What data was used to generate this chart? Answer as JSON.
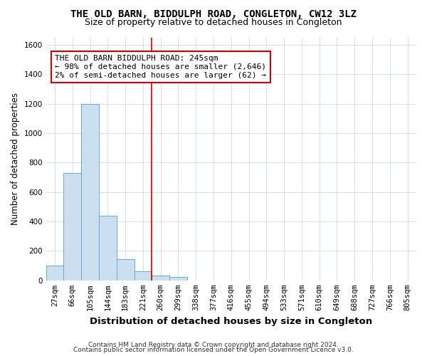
{
  "title": "THE OLD BARN, BIDDULPH ROAD, CONGLETON, CW12 3LZ",
  "subtitle": "Size of property relative to detached houses in Congleton",
  "xlabel": "Distribution of detached houses by size in Congleton",
  "ylabel": "Number of detached properties",
  "categories": [
    "27sqm",
    "66sqm",
    "105sqm",
    "144sqm",
    "183sqm",
    "221sqm",
    "260sqm",
    "299sqm",
    "338sqm",
    "377sqm",
    "416sqm",
    "455sqm",
    "494sqm",
    "533sqm",
    "571sqm",
    "610sqm",
    "649sqm",
    "688sqm",
    "727sqm",
    "766sqm",
    "805sqm"
  ],
  "values": [
    100,
    730,
    1200,
    440,
    145,
    60,
    35,
    25,
    0,
    0,
    0,
    0,
    0,
    0,
    0,
    0,
    0,
    0,
    0,
    0,
    0
  ],
  "bar_color": "#ccdff0",
  "bar_edge_color": "#6aaad4",
  "red_line_x": 5.5,
  "annotation_text": "THE OLD BARN BIDDULPH ROAD: 245sqm\n← 98% of detached houses are smaller (2,646)\n2% of semi-detached houses are larger (62) →",
  "annotation_box_color": "#ffffff",
  "annotation_box_edge": "#cc0000",
  "red_line_color": "#cc0000",
  "ylim": [
    0,
    1650
  ],
  "yticks": [
    0,
    200,
    400,
    600,
    800,
    1000,
    1200,
    1400,
    1600
  ],
  "footer_line1": "Contains HM Land Registry data © Crown copyright and database right 2024.",
  "footer_line2": "Contains public sector information licensed under the Open Government Licence v3.0.",
  "bg_color": "#ffffff",
  "grid_color": "#c8d0d8",
  "title_fontsize": 10,
  "subtitle_fontsize": 9,
  "ylabel_fontsize": 8.5,
  "xlabel_fontsize": 9.5,
  "tick_fontsize": 7.5,
  "annot_fontsize": 8,
  "footer_fontsize": 6.5
}
